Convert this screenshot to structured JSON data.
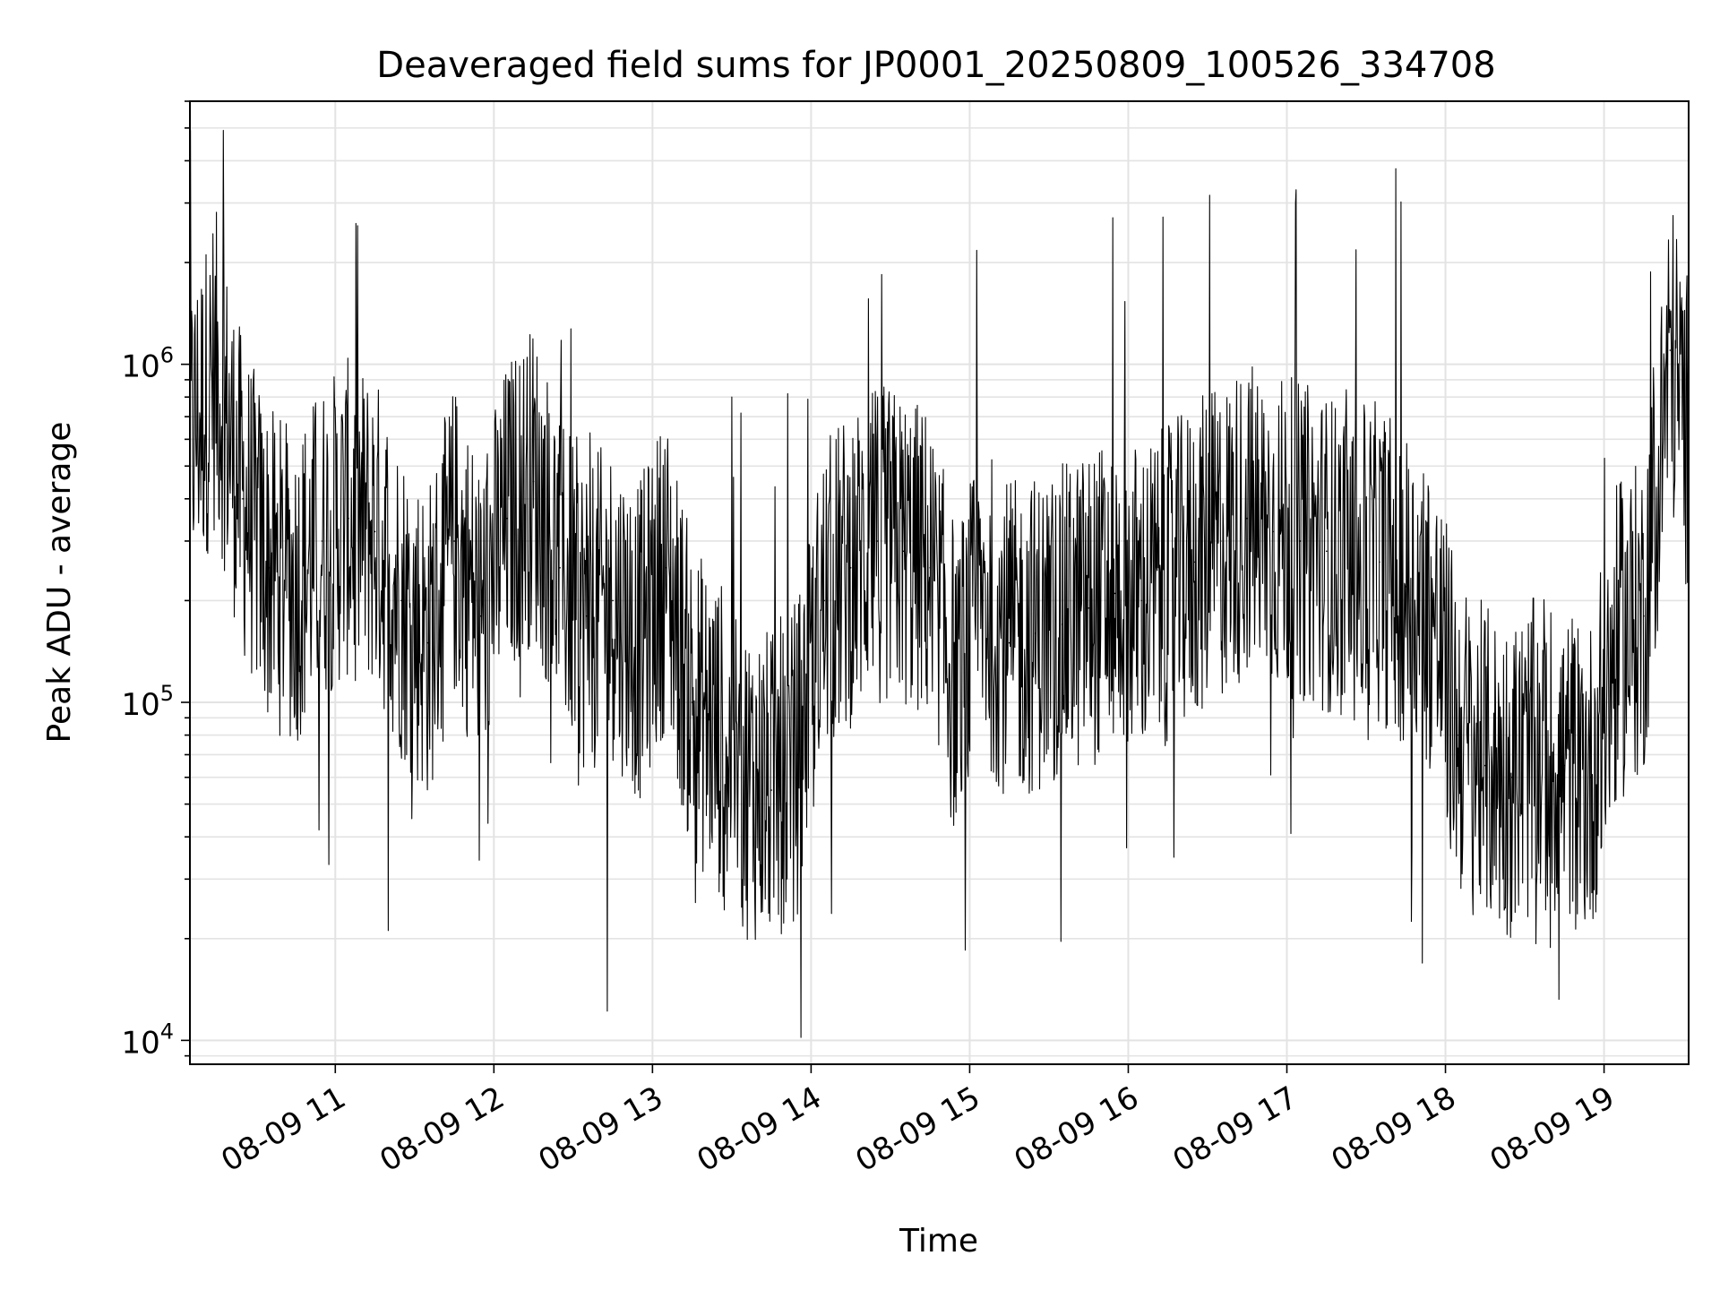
{
  "chart_data": {
    "type": "line",
    "title": "Deaveraged field sums for JP0001_20250809_100526_334708",
    "xlabel": "Time",
    "ylabel": "Peak ADU - average",
    "yscale": "log",
    "xlim": [
      "2025-08-09 10:05",
      "2025-08-09 19:32"
    ],
    "ylim": [
      8500,
      6000000
    ],
    "xticks": [
      "08-09 11",
      "08-09 12",
      "08-09 13",
      "08-09 14",
      "08-09 15",
      "08-09 16",
      "08-09 17",
      "08-09 18",
      "08-09 19"
    ],
    "yticks": [
      {
        "base": "10",
        "exp": "4",
        "value": 10000
      },
      {
        "base": "10",
        "exp": "5",
        "value": 100000
      },
      {
        "base": "10",
        "exp": "6",
        "value": 1000000
      }
    ],
    "grid": true,
    "line_color": "#000000",
    "series": [
      {
        "x": [
          "2025-08-09 10:05",
          "2025-08-09 10:15",
          "2025-08-09 10:25",
          "2025-08-09 10:35",
          "2025-08-09 10:45",
          "2025-08-09 10:55",
          "2025-08-09 11:05",
          "2025-08-09 11:15",
          "2025-08-09 11:25",
          "2025-08-09 11:35",
          "2025-08-09 11:45",
          "2025-08-09 11:55",
          "2025-08-09 12:05",
          "2025-08-09 12:15",
          "2025-08-09 12:25",
          "2025-08-09 12:35",
          "2025-08-09 12:45",
          "2025-08-09 12:55",
          "2025-08-09 13:05",
          "2025-08-09 13:15",
          "2025-08-09 13:25",
          "2025-08-09 13:35",
          "2025-08-09 13:45",
          "2025-08-09 13:55",
          "2025-08-09 14:05",
          "2025-08-09 14:15",
          "2025-08-09 14:25",
          "2025-08-09 14:35",
          "2025-08-09 14:45",
          "2025-08-09 14:55",
          "2025-08-09 15:05",
          "2025-08-09 15:15",
          "2025-08-09 15:25",
          "2025-08-09 15:35",
          "2025-08-09 15:45",
          "2025-08-09 15:55",
          "2025-08-09 16:05",
          "2025-08-09 16:15",
          "2025-08-09 16:25",
          "2025-08-09 16:35",
          "2025-08-09 16:45",
          "2025-08-09 16:55",
          "2025-08-09 17:05",
          "2025-08-09 17:15",
          "2025-08-09 17:25",
          "2025-08-09 17:35",
          "2025-08-09 17:45",
          "2025-08-09 17:55",
          "2025-08-09 18:05",
          "2025-08-09 18:15",
          "2025-08-09 18:25",
          "2025-08-09 18:35",
          "2025-08-09 18:45",
          "2025-08-09 18:55",
          "2025-08-09 19:05",
          "2025-08-09 19:15",
          "2025-08-09 19:25",
          "2025-08-09 19:32"
        ],
        "y": [
          600000,
          950000,
          400000,
          250000,
          220000,
          300000,
          350000,
          320000,
          200000,
          150000,
          300000,
          180000,
          350000,
          450000,
          250000,
          180000,
          200000,
          150000,
          250000,
          100000,
          80000,
          60000,
          55000,
          70000,
          200000,
          250000,
          300000,
          280000,
          250000,
          110000,
          200000,
          150000,
          160000,
          170000,
          190000,
          210000,
          200000,
          220000,
          260000,
          300000,
          350000,
          320000,
          300000,
          280000,
          250000,
          260000,
          220000,
          180000,
          80000,
          65000,
          60000,
          70000,
          65000,
          60000,
          150000,
          180000,
          1100000,
          600000
        ]
      }
    ]
  }
}
